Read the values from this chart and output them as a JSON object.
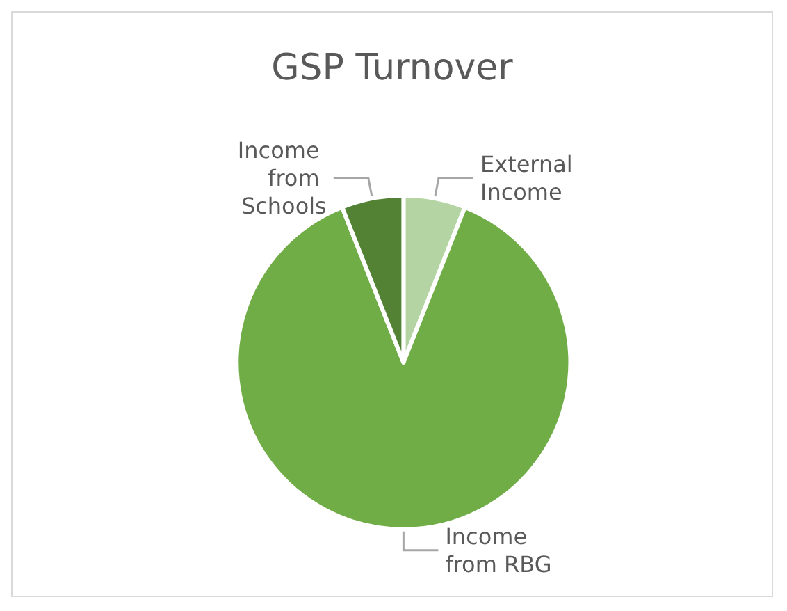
{
  "chart_data": {
    "type": "pie",
    "title": "GSP Turnover",
    "categories": [
      "External Income",
      "Income from RBG",
      "Income from Schools"
    ],
    "values": [
      6,
      88,
      6
    ],
    "colors": [
      "#b4d4a4",
      "#70ad47",
      "#548235"
    ],
    "legend": false
  }
}
